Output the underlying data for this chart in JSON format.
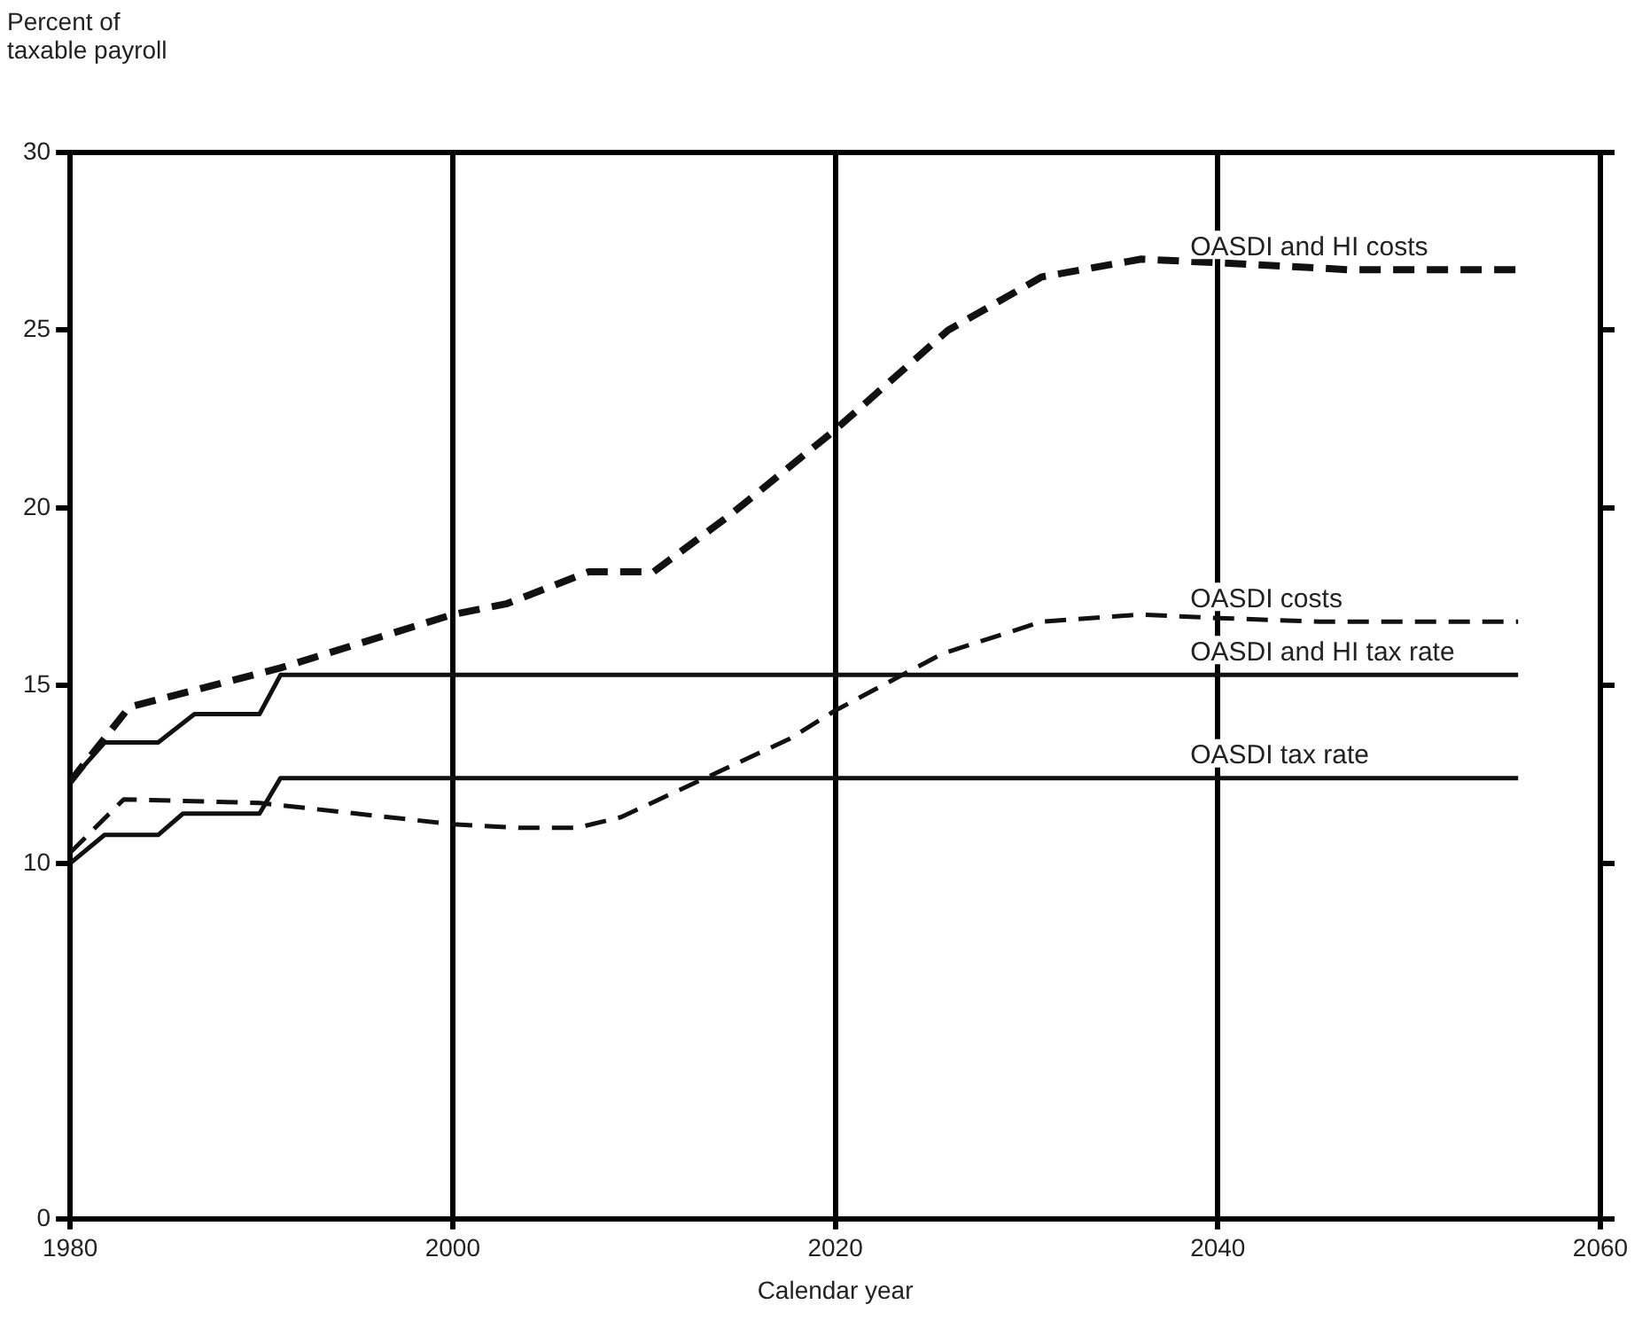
{
  "chart_data": {
    "type": "line",
    "ylabel": "Percent of taxable payroll",
    "xlabel": "Calendar year",
    "xlim": [
      1980,
      2060
    ],
    "xticks": [
      1980,
      2000,
      2020,
      2040,
      2060
    ],
    "ylim": [
      0,
      30
    ],
    "yticks": [
      0,
      10,
      15,
      20,
      25,
      30
    ],
    "grid": "x",
    "legend": false,
    "marker": "none",
    "series": [
      {
        "name": "OASDI and HI costs",
        "color": "#111111",
        "line_style": "dashed",
        "x": [
          1980,
          1983.1,
          1991,
          2000,
          2002.8,
          2007.1,
          2010.5,
          2014.5,
          2020,
          2025.9,
          2030.8,
          2036,
          2040,
          2046.9,
          2055.7
        ],
        "values": [
          12.3,
          14.4,
          15.5,
          17.0,
          17.3,
          18.2,
          18.2,
          19.8,
          22.2,
          25.0,
          26.5,
          27.0,
          26.9,
          26.7,
          26.7
        ]
      },
      {
        "name": "OASDI costs",
        "color": "#111111",
        "line_style": "dashed",
        "x": [
          1980,
          1982.8,
          1989.9,
          2000,
          2003.5,
          2006.5,
          2008.8,
          2017.6,
          2020,
          2025.6,
          2030.8,
          2036,
          2040,
          2045.3,
          2055.7
        ],
        "values": [
          10.3,
          11.8,
          11.7,
          11.1,
          11.0,
          11.0,
          11.3,
          13.5,
          14.3,
          15.9,
          16.8,
          17.0,
          16.9,
          16.8,
          16.8
        ]
      },
      {
        "name": "OASDI and HI tax rate",
        "color": "#111111",
        "line_style": "solid",
        "x": [
          1980,
          1981.8,
          1984.6,
          1986.5,
          1989.9,
          1991,
          2055.7
        ],
        "values": [
          12.3,
          13.4,
          13.4,
          14.2,
          14.2,
          15.3,
          15.3
        ]
      },
      {
        "name": "OASDI tax rate",
        "color": "#111111",
        "line_style": "solid",
        "x": [
          1980,
          1981.8,
          1984.6,
          1985.9,
          1989.9,
          1991,
          2055.7
        ],
        "values": [
          10.0,
          10.8,
          10.8,
          11.4,
          11.4,
          12.4,
          12.4
        ]
      }
    ]
  }
}
